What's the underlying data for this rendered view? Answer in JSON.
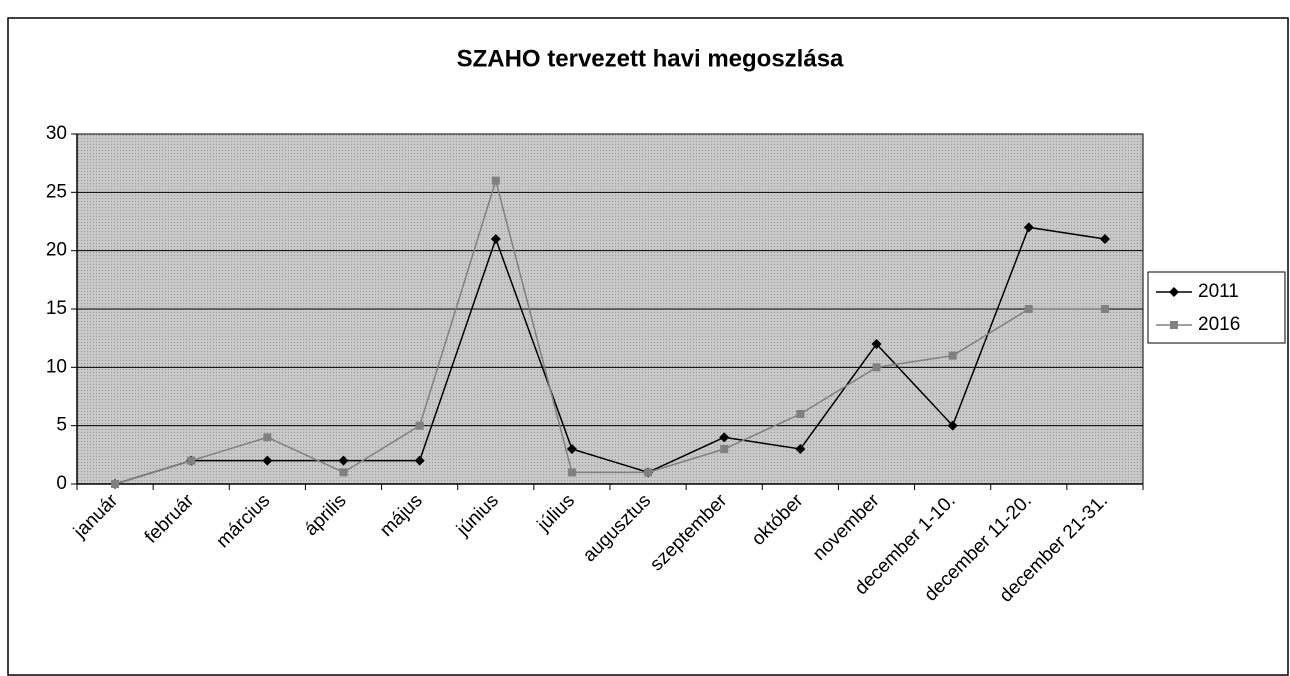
{
  "chart_data": {
    "type": "line",
    "title": "SZAHO tervezett havi megoszlása",
    "categories": [
      "január",
      "február",
      "március",
      "április",
      "május",
      "június",
      "július",
      "augusztus",
      "szeptember",
      "október",
      "november",
      "december 1-10.",
      "december 11-20.",
      "december 21-31."
    ],
    "series": [
      {
        "name": "2011",
        "color": "#000000",
        "marker": "diamond",
        "values": [
          0,
          2,
          2,
          2,
          2,
          21,
          3,
          1,
          4,
          3,
          12,
          5,
          22,
          21
        ]
      },
      {
        "name": "2016",
        "color": "#808080",
        "marker": "square",
        "values": [
          0,
          2,
          4,
          1,
          5,
          26,
          1,
          1,
          3,
          6,
          10,
          11,
          15,
          15
        ]
      }
    ],
    "ylim": [
      0,
      30
    ],
    "yticks": [
      0,
      5,
      10,
      15,
      20,
      25,
      30
    ],
    "grid": true,
    "legend": "right"
  }
}
